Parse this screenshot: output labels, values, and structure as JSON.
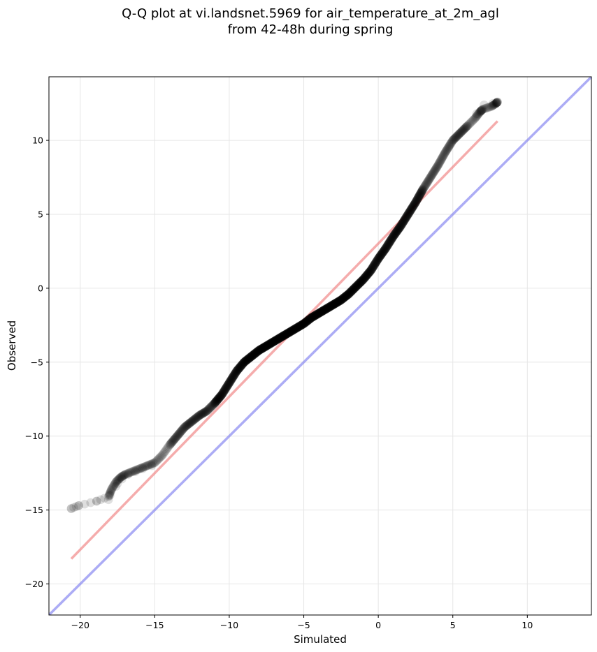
{
  "chart_data": {
    "type": "scatter",
    "title_line1": "Q-Q plot at vi.landsnet.5969 for air_temperature_at_2m_agl",
    "title_line2": "from 42-48h during spring",
    "xlabel": "Simulated",
    "ylabel": "Observed",
    "xlim": [
      -22.1,
      14.3
    ],
    "ylim": [
      -22.1,
      14.3
    ],
    "grid": true,
    "xticks": [
      -20,
      -15,
      -10,
      -5,
      0,
      5,
      10
    ],
    "yticks": [
      -20,
      -15,
      -10,
      -5,
      0,
      5,
      10
    ],
    "xtick_labels": [
      "−20",
      "−15",
      "−10",
      "−5",
      "0",
      "5",
      "10"
    ],
    "ytick_labels": [
      "−20",
      "−15",
      "−10",
      "−5",
      "0",
      "5",
      "10"
    ],
    "colors": {
      "points": "#000000",
      "fit_line": "#f08080",
      "identity_line": "#8080f0",
      "grid": "#e6e6e6"
    },
    "fit_line": {
      "x": [
        -20.6,
        8.0
      ],
      "y": [
        -18.3,
        11.3
      ]
    },
    "identity_line": {
      "x": [
        -22.1,
        14.3
      ],
      "y": [
        -22.1,
        14.3
      ]
    },
    "quantile_curve": {
      "x": [
        -20.6,
        -20.1,
        -18.9,
        -18.1,
        -17.9,
        -17.6,
        -17.3,
        -17.0,
        -16.5,
        -16.0,
        -15.5,
        -15.0,
        -14.5,
        -14.0,
        -13.5,
        -13.0,
        -12.5,
        -12.0,
        -11.5,
        -11.0,
        -10.5,
        -10.0,
        -9.5,
        -9.0,
        -8.5,
        -8.0,
        -7.5,
        -7.0,
        -6.5,
        -6.0,
        -5.5,
        -5.0,
        -4.5,
        -4.0,
        -3.5,
        -3.0,
        -2.5,
        -2.0,
        -1.5,
        -1.0,
        -0.5,
        0.0,
        0.5,
        1.0,
        1.5,
        2.0,
        2.5,
        3.0,
        3.5,
        4.0,
        4.5,
        5.0,
        5.5,
        6.0,
        6.5,
        6.8,
        7.0,
        7.6,
        7.9,
        8.0
      ],
      "y": [
        -14.9,
        -14.7,
        -14.4,
        -14.1,
        -13.6,
        -13.1,
        -12.8,
        -12.6,
        -12.4,
        -12.2,
        -12.0,
        -11.8,
        -11.3,
        -10.6,
        -10.0,
        -9.4,
        -9.0,
        -8.6,
        -8.3,
        -7.8,
        -7.2,
        -6.4,
        -5.6,
        -5.0,
        -4.6,
        -4.2,
        -3.9,
        -3.6,
        -3.3,
        -3.0,
        -2.7,
        -2.4,
        -2.0,
        -1.7,
        -1.4,
        -1.1,
        -0.8,
        -0.4,
        0.1,
        0.6,
        1.2,
        2.0,
        2.7,
        3.5,
        4.2,
        5.0,
        5.8,
        6.7,
        7.5,
        8.3,
        9.2,
        10.0,
        10.5,
        11.0,
        11.5,
        11.9,
        12.1,
        12.3,
        12.5,
        12.6
      ]
    },
    "scatter_points": {
      "x": [
        -20.6,
        -20.1,
        -18.9,
        -18.1,
        -18.0,
        -17.6,
        -17.5,
        -17.2,
        -16.8,
        -16.3,
        -15.8,
        -15.2,
        6.6,
        6.9,
        7.1,
        7.7,
        8.0
      ],
      "y": [
        -14.9,
        -14.7,
        -14.4,
        -14.3,
        -14.0,
        -13.4,
        -13.2,
        -12.9,
        -12.6,
        -12.4,
        -12.2,
        -12.0,
        11.8,
        12.0,
        12.4,
        12.5,
        12.6
      ]
    }
  }
}
